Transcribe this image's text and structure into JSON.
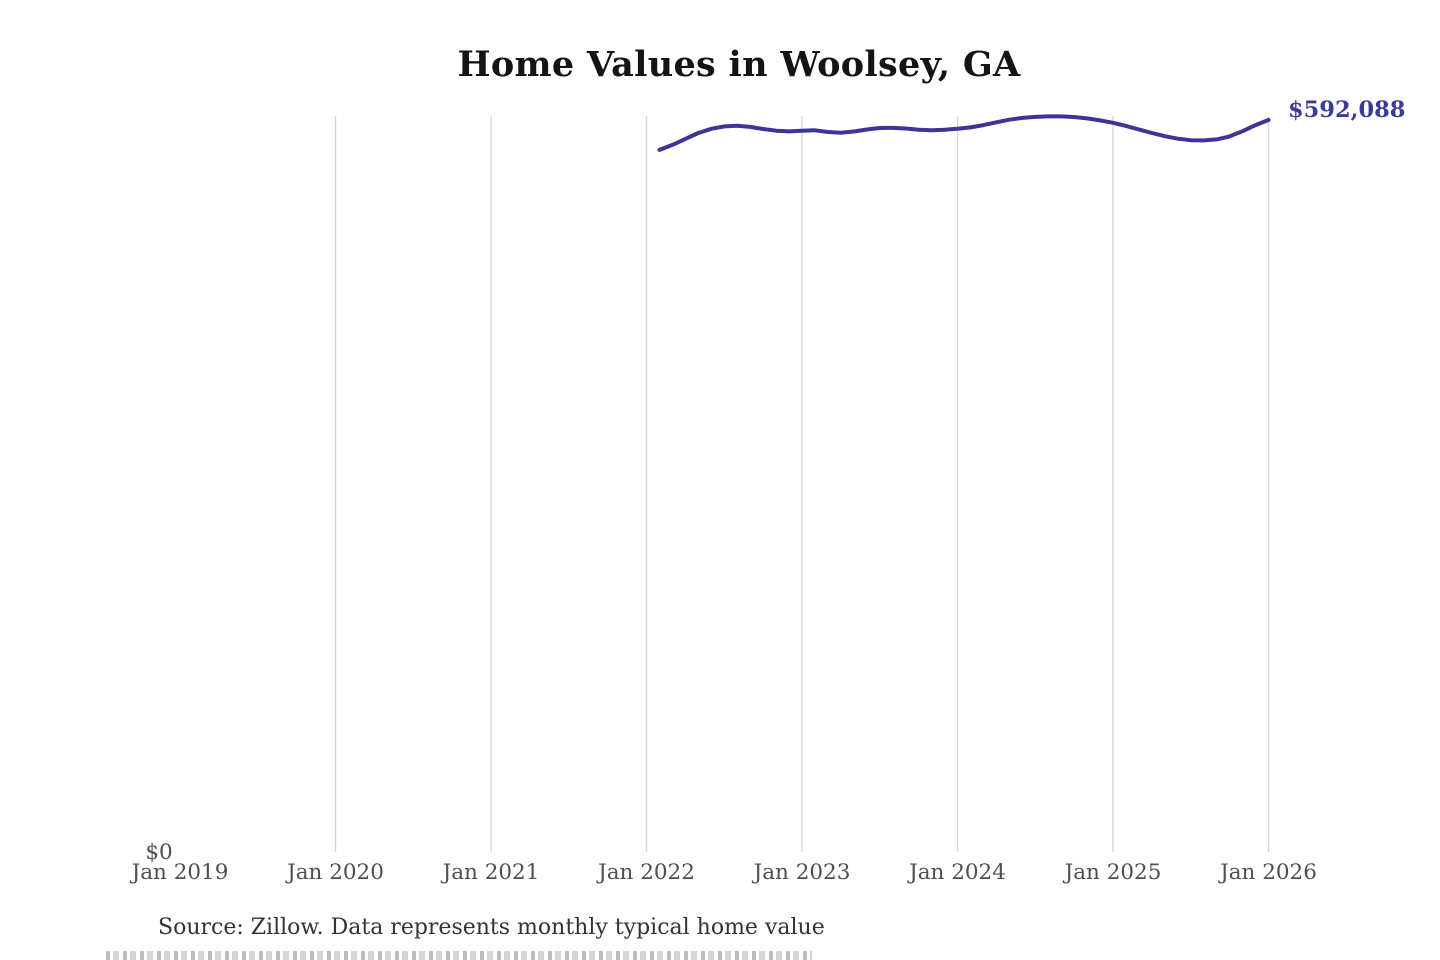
{
  "page": {
    "title": "Home Values in Woolsey, GA",
    "source_note": "Source: Zillow. Data represents monthly typical home value"
  },
  "chart_data": {
    "type": "line",
    "title": "Home Values in Woolsey, GA",
    "series_name": "Monthly typical home value",
    "x": [
      "2022-02",
      "2022-03",
      "2022-04",
      "2022-05",
      "2022-06",
      "2022-07",
      "2022-08",
      "2022-09",
      "2022-10",
      "2022-11",
      "2022-12",
      "2023-01",
      "2023-02",
      "2023-03",
      "2023-04",
      "2023-05",
      "2023-06",
      "2023-07",
      "2023-08",
      "2023-09",
      "2023-10",
      "2023-11",
      "2023-12",
      "2024-01",
      "2024-02",
      "2024-03",
      "2024-04",
      "2024-05",
      "2024-06",
      "2024-07",
      "2024-08",
      "2024-09",
      "2024-10",
      "2024-11",
      "2024-12",
      "2025-01",
      "2025-02",
      "2025-03",
      "2025-04",
      "2025-05",
      "2025-06",
      "2025-07",
      "2025-08",
      "2025-09",
      "2025-10",
      "2025-11",
      "2025-12",
      "2026-01"
    ],
    "values": [
      567900,
      572000,
      576800,
      581600,
      585000,
      586900,
      587400,
      586500,
      584800,
      583400,
      582900,
      583400,
      583800,
      582400,
      581800,
      582800,
      584400,
      585600,
      585700,
      585200,
      584200,
      583800,
      584200,
      585000,
      586100,
      588000,
      590200,
      592300,
      593800,
      594600,
      595000,
      595000,
      594500,
      593400,
      591800,
      589800,
      587300,
      584400,
      581600,
      579000,
      577000,
      575800,
      575600,
      576400,
      578800,
      583000,
      588000,
      592088
    ],
    "end_label": "$592,088",
    "x_ticks": [
      {
        "label": "Jan 2019",
        "year": 2019,
        "gridline": false
      },
      {
        "label": "Jan 2020",
        "year": 2020,
        "gridline": true
      },
      {
        "label": "Jan 2021",
        "year": 2021,
        "gridline": true
      },
      {
        "label": "Jan 2022",
        "year": 2022,
        "gridline": true
      },
      {
        "label": "Jan 2023",
        "year": 2023,
        "gridline": true
      },
      {
        "label": "Jan 2024",
        "year": 2024,
        "gridline": true
      },
      {
        "label": "Jan 2025",
        "year": 2025,
        "gridline": true
      },
      {
        "label": "Jan 2026",
        "year": 2026,
        "gridline": true
      }
    ],
    "y_ticks": [
      {
        "value": 0,
        "label": "$0"
      }
    ],
    "ylim": [
      0,
      600000
    ],
    "grid": "vertical-only",
    "legend": "none",
    "colors": {
      "line": "#3b3596",
      "end_label": "#3b3a9a",
      "gridline": "#d4d4d4",
      "tick_label": "#4f4f4f",
      "title": "#141414",
      "source": "#333333"
    }
  }
}
